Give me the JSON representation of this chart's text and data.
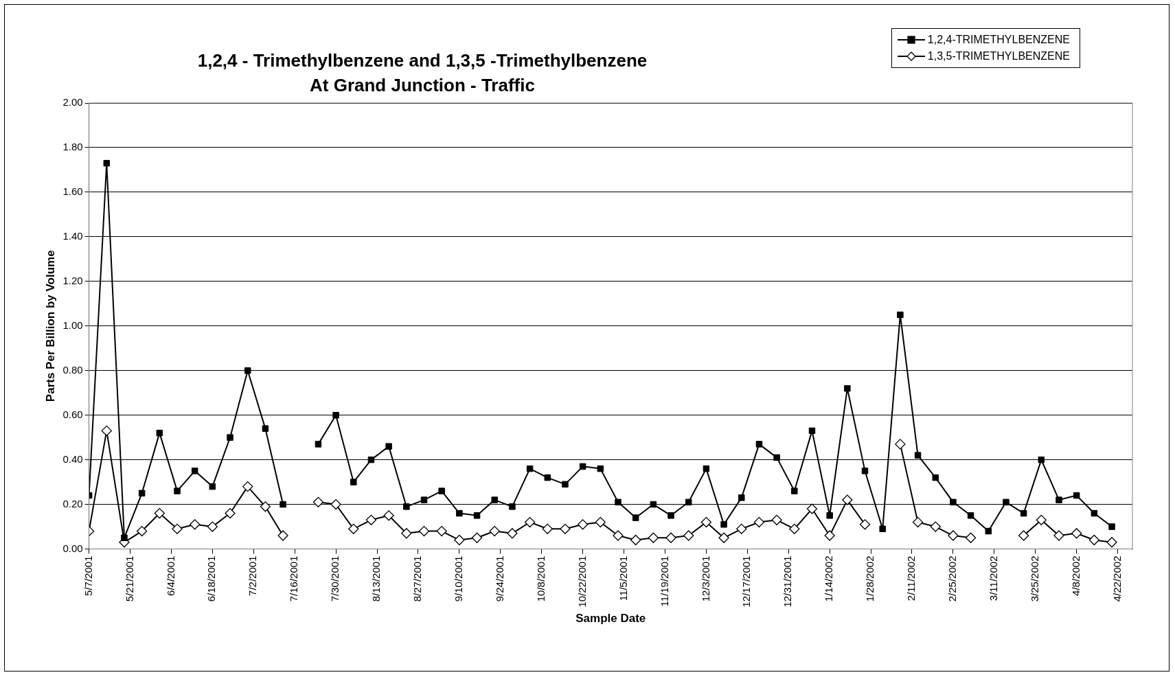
{
  "chart_data": {
    "type": "line",
    "title": "1,2,4 - Trimethylbenzene and 1,3,5 -Trimethylbenzene\nAt Grand Junction - Traffic",
    "xlabel": "Sample Date",
    "ylabel": "Parts Per Billion by Volume",
    "x": [
      "2001-05-07",
      "2001-05-13",
      "2001-05-19",
      "2001-05-25",
      "2001-05-31",
      "2001-06-06",
      "2001-06-12",
      "2001-06-18",
      "2001-06-24",
      "2001-06-30",
      "2001-07-06",
      "2001-07-12",
      "2001-07-18",
      "2001-07-24",
      "2001-07-30",
      "2001-08-05",
      "2001-08-11",
      "2001-08-17",
      "2001-08-23",
      "2001-08-29",
      "2001-09-04",
      "2001-09-10",
      "2001-09-16",
      "2001-09-22",
      "2001-09-28",
      "2001-10-04",
      "2001-10-10",
      "2001-10-16",
      "2001-10-22",
      "2001-10-28",
      "2001-11-03",
      "2001-11-09",
      "2001-11-15",
      "2001-11-21",
      "2001-11-27",
      "2001-12-03",
      "2001-12-09",
      "2001-12-15",
      "2001-12-21",
      "2001-12-27",
      "2002-01-02",
      "2002-01-08",
      "2002-01-14",
      "2002-01-20",
      "2002-01-26",
      "2002-02-01",
      "2002-02-07",
      "2002-02-13",
      "2002-02-19",
      "2002-02-25",
      "2002-03-03",
      "2002-03-09",
      "2002-03-15",
      "2002-03-21",
      "2002-03-27",
      "2002-04-02",
      "2002-04-08",
      "2002-04-14",
      "2002-04-20"
    ],
    "series": [
      {
        "name": "1,2,4-TRIMETHYLBENZENE",
        "color": "#000000",
        "marker": "square",
        "values": [
          0.24,
          1.73,
          0.05,
          0.25,
          0.52,
          0.26,
          0.35,
          0.28,
          0.5,
          0.8,
          0.54,
          0.2,
          null,
          0.47,
          0.6,
          0.3,
          0.4,
          0.46,
          0.19,
          0.22,
          0.26,
          0.16,
          0.15,
          0.22,
          0.19,
          0.36,
          0.32,
          0.29,
          0.37,
          0.36,
          0.21,
          0.14,
          0.2,
          0.15,
          0.21,
          0.36,
          0.11,
          0.23,
          0.47,
          0.41,
          0.26,
          0.53,
          0.15,
          0.72,
          0.35,
          0.09,
          1.05,
          0.42,
          0.32,
          0.21,
          0.15,
          0.08,
          0.21,
          0.16,
          0.4,
          0.22,
          0.24,
          0.16,
          0.1
        ]
      },
      {
        "name": "1,3,5-TRIMETHYLBENZENE",
        "color": "#000000",
        "marker": "diamond",
        "values": [
          0.08,
          0.53,
          0.03,
          0.08,
          0.16,
          0.09,
          0.11,
          0.1,
          0.16,
          0.28,
          0.19,
          0.06,
          null,
          0.21,
          0.2,
          0.09,
          0.13,
          0.15,
          0.07,
          0.08,
          0.08,
          0.04,
          0.05,
          0.08,
          0.07,
          0.12,
          0.09,
          0.09,
          0.11,
          0.12,
          0.06,
          0.04,
          0.05,
          0.05,
          0.06,
          0.12,
          0.05,
          0.09,
          0.12,
          0.13,
          0.09,
          0.18,
          0.06,
          0.22,
          0.11,
          null,
          0.47,
          0.12,
          0.1,
          0.06,
          0.05,
          null,
          null,
          0.06,
          0.13,
          0.06,
          0.07,
          0.04,
          0.03
        ]
      }
    ],
    "xlim": [
      "2001-05-07",
      "2002-04-27"
    ],
    "xticks": [
      {
        "value": "2001-05-07",
        "label": "5/7/2001"
      },
      {
        "value": "2001-05-21",
        "label": "5/21/2001"
      },
      {
        "value": "2001-06-04",
        "label": "6/4/2001"
      },
      {
        "value": "2001-06-18",
        "label": "6/18/2001"
      },
      {
        "value": "2001-07-02",
        "label": "7/2/2001"
      },
      {
        "value": "2001-07-16",
        "label": "7/16/2001"
      },
      {
        "value": "2001-07-30",
        "label": "7/30/2001"
      },
      {
        "value": "2001-08-13",
        "label": "8/13/2001"
      },
      {
        "value": "2001-08-27",
        "label": "8/27/2001"
      },
      {
        "value": "2001-09-10",
        "label": "9/10/2001"
      },
      {
        "value": "2001-09-24",
        "label": "9/24/2001"
      },
      {
        "value": "2001-10-08",
        "label": "10/8/2001"
      },
      {
        "value": "2001-10-22",
        "label": "10/22/2001"
      },
      {
        "value": "2001-11-05",
        "label": "11/5/2001"
      },
      {
        "value": "2001-11-19",
        "label": "11/19/2001"
      },
      {
        "value": "2001-12-03",
        "label": "12/3/2001"
      },
      {
        "value": "2001-12-17",
        "label": "12/17/2001"
      },
      {
        "value": "2001-12-31",
        "label": "12/31/2001"
      },
      {
        "value": "2002-01-14",
        "label": "1/14/2002"
      },
      {
        "value": "2002-01-28",
        "label": "1/28/2002"
      },
      {
        "value": "2002-02-11",
        "label": "2/11/2002"
      },
      {
        "value": "2002-02-25",
        "label": "2/25/2002"
      },
      {
        "value": "2002-03-11",
        "label": "3/11/2002"
      },
      {
        "value": "2002-03-25",
        "label": "3/25/2002"
      },
      {
        "value": "2002-04-08",
        "label": "4/8/2002"
      },
      {
        "value": "2002-04-22",
        "label": "4/22/2002"
      }
    ],
    "ylim": [
      0,
      2
    ],
    "yticks": [
      {
        "value": 0,
        "label": "0.00"
      },
      {
        "value": 0.2,
        "label": "0.20"
      },
      {
        "value": 0.4,
        "label": "0.40"
      },
      {
        "value": 0.6,
        "label": "0.60"
      },
      {
        "value": 0.8,
        "label": "0.80"
      },
      {
        "value": 1,
        "label": "1.00"
      },
      {
        "value": 1.2,
        "label": "1.20"
      },
      {
        "value": 1.4,
        "label": "1.40"
      },
      {
        "value": 1.6,
        "label": "1.60"
      },
      {
        "value": 1.8,
        "label": "1.80"
      },
      {
        "value": 2,
        "label": "2.00"
      }
    ],
    "grid": "y",
    "legend": "top right",
    "line_style": "solid"
  }
}
